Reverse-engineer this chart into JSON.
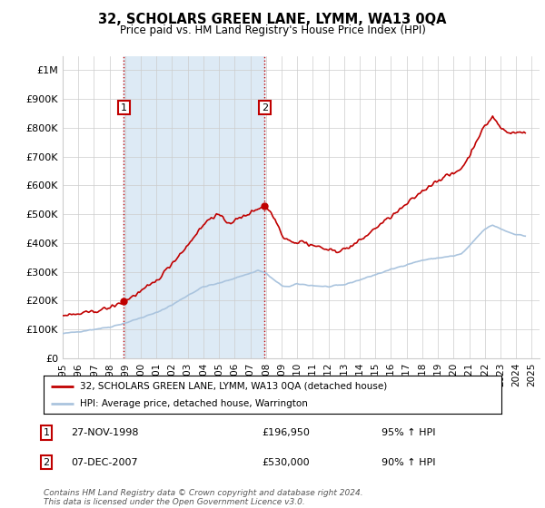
{
  "title": "32, SCHOLARS GREEN LANE, LYMM, WA13 0QA",
  "subtitle": "Price paid vs. HM Land Registry's House Price Index (HPI)",
  "legend_line1": "32, SCHOLARS GREEN LANE, LYMM, WA13 0QA (detached house)",
  "legend_line2": "HPI: Average price, detached house, Warrington",
  "annotation1_label": "1",
  "annotation1_date": "27-NOV-1998",
  "annotation1_price": "£196,950",
  "annotation1_hpi": "95% ↑ HPI",
  "annotation2_label": "2",
  "annotation2_date": "07-DEC-2007",
  "annotation2_price": "£530,000",
  "annotation2_hpi": "90% ↑ HPI",
  "footer": "Contains HM Land Registry data © Crown copyright and database right 2024.\nThis data is licensed under the Open Government Licence v3.0.",
  "hpi_color": "#aac4de",
  "hpi_fill_color": "#ddeaf5",
  "price_color": "#c00000",
  "marker_color": "#c00000",
  "annotation_box_color": "#c00000",
  "vline_color": "#c00000",
  "grid_color": "#cccccc",
  "bg_color": "#ffffff",
  "ylim": [
    0,
    1050000
  ],
  "yticks": [
    0,
    100000,
    200000,
    300000,
    400000,
    500000,
    600000,
    700000,
    800000,
    900000,
    1000000
  ],
  "ytick_labels": [
    "£0",
    "£100K",
    "£200K",
    "£300K",
    "£400K",
    "£500K",
    "£600K",
    "£700K",
    "£800K",
    "£900K",
    "£1M"
  ],
  "trans1_x": 1998.92,
  "trans1_y": 196950,
  "trans1_label": "1",
  "trans2_x": 2007.92,
  "trans2_y": 530000,
  "trans2_label": "2",
  "vline1_x": 1998.92,
  "vline2_x": 2007.92,
  "xlim": [
    1995.0,
    2025.5
  ],
  "xticks": [
    1995,
    1996,
    1997,
    1998,
    1999,
    2000,
    2001,
    2002,
    2003,
    2004,
    2005,
    2006,
    2007,
    2008,
    2009,
    2010,
    2011,
    2012,
    2013,
    2014,
    2015,
    2016,
    2017,
    2018,
    2019,
    2020,
    2021,
    2022,
    2023,
    2024,
    2025
  ]
}
